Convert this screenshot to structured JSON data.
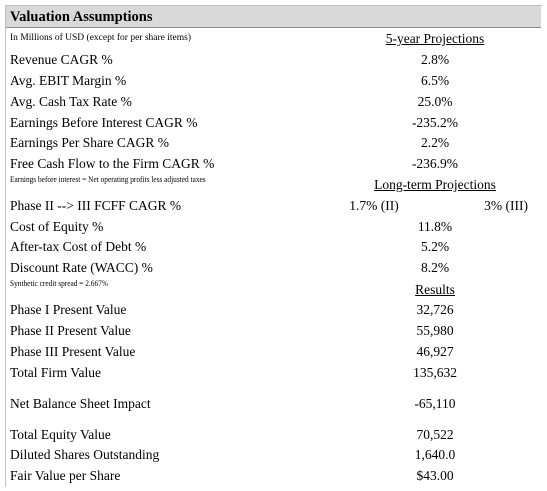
{
  "header": {
    "title": "Valuation Assumptions",
    "subtitle": "In Millions of USD (except for per share items)"
  },
  "sections": [
    {
      "heading": "5-year Projections",
      "rows": [
        [
          "Revenue CAGR %",
          "2.8%"
        ],
        [
          "Avg. EBIT Margin %",
          "6.5%"
        ],
        [
          "Avg. Cash Tax Rate %",
          "25.0%"
        ],
        [
          "Earnings Before Interest CAGR %",
          "-235.2%"
        ],
        [
          "Earnings Per Share CAGR %",
          "2.2%"
        ],
        [
          "Free Cash Flow to the Firm CAGR %",
          "-236.9%"
        ]
      ],
      "note": "Earnings before interest = Net operating profits less adjusted taxes"
    },
    {
      "heading": "Long-term Projections",
      "rows": [
        [
          "Phase II --> III FCFF CAGR %",
          "1.7% (II)",
          "3% (III)"
        ],
        [
          "Cost of Equity %",
          "11.8%"
        ],
        [
          "After-tax Cost of Debt %",
          "5.2%"
        ],
        [
          "Discount Rate (WACC) %",
          "8.2%"
        ]
      ],
      "note": "Synthetic credit spread = 2.667%"
    },
    {
      "heading": "Results",
      "rows": [
        [
          "Phase I Present Value",
          "32,726"
        ],
        [
          "Phase II Present Value",
          "55,980"
        ],
        [
          "Phase III Present Value",
          "46,927"
        ],
        [
          "Total Firm Value",
          "135,632"
        ],
        [
          "Net Balance Sheet Impact",
          "-65,110"
        ],
        [
          "Total Equity Value",
          "70,522"
        ],
        [
          "Diluted Shares Outstanding",
          "1,640.0"
        ],
        [
          "Fair Value per Share",
          "$43.00"
        ]
      ]
    }
  ]
}
